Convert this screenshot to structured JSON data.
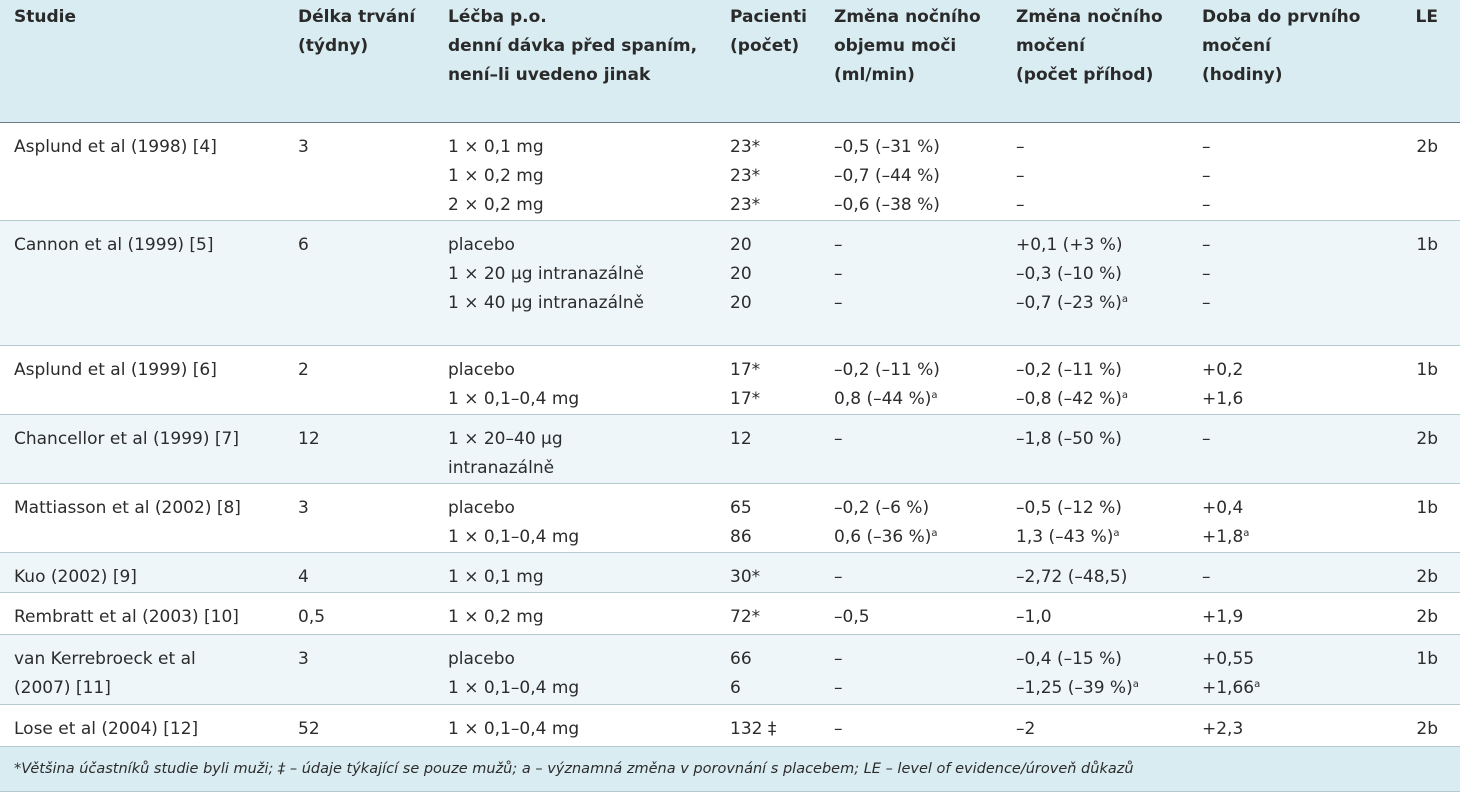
{
  "header": {
    "studie": [
      "Studie"
    ],
    "delka": [
      "Délka trvání",
      "(týdny)"
    ],
    "lecba": [
      "Léčba p.o.",
      "denní dávka před spaním,",
      "není–li uvedeno jinak"
    ],
    "pacienti": [
      "Pacienti",
      "(počet)"
    ],
    "objem": [
      "Změna nočního",
      "objemu moči",
      "(ml/min)"
    ],
    "moceni": [
      "Změna nočního",
      "močení",
      "(počet příhod)"
    ],
    "doba": [
      "Doba do prvního",
      "močení",
      "(hodiny)"
    ],
    "le": [
      "LE"
    ]
  },
  "rows": [
    {
      "studie": [
        "Asplund et al (1998) [4]"
      ],
      "delka": [
        "3"
      ],
      "lecba": [
        "1 × 0,1 mg",
        "1 × 0,2 mg",
        "2 × 0,2 mg"
      ],
      "pacienti": [
        "23*",
        "23*",
        "23*"
      ],
      "objem": [
        "–0,5 (–31 %)",
        "–0,7 (–44 %)",
        "–0,6 (–38 %)"
      ],
      "moceni": [
        "–",
        "–",
        "–"
      ],
      "doba": [
        "–",
        "–",
        "–"
      ],
      "le": [
        "2b"
      ]
    },
    {
      "studie": [
        "Cannon et al (1999) [5]"
      ],
      "delka": [
        "6"
      ],
      "lecba": [
        "placebo",
        "1 × 20 µg intranazálně",
        "1 × 40 µg intranazálně"
      ],
      "pacienti": [
        "20",
        "20",
        "20"
      ],
      "objem": [
        "–",
        "–",
        "–"
      ],
      "moceni": [
        "+0,1 (+3 %)",
        "–0,3 (–10 %)",
        "–0,7 (–23 %)"
      ],
      "moceni_sup": [
        "",
        "",
        "a"
      ],
      "doba": [
        "–",
        "–",
        "–"
      ],
      "le": [
        "1b"
      ]
    },
    {
      "studie": [
        "Asplund et al (1999) [6]"
      ],
      "delka": [
        "2"
      ],
      "lecba": [
        "placebo",
        "1 × 0,1–0,4 mg"
      ],
      "pacienti": [
        "17*",
        "17*"
      ],
      "objem": [
        "–0,2 (–11 %)",
        "0,8 (–44 %)"
      ],
      "objem_sup": [
        "",
        "a"
      ],
      "moceni": [
        "–0,2 (–11 %)",
        "–0,8 (–42 %)"
      ],
      "moceni_sup": [
        "",
        "a"
      ],
      "doba": [
        "+0,2",
        "+1,6"
      ],
      "le": [
        "1b"
      ]
    },
    {
      "studie": [
        "Chancellor et al (1999) [7]"
      ],
      "delka": [
        "12"
      ],
      "lecba": [
        "1 × 20–40 µg",
        "intranazálně"
      ],
      "pacienti": [
        "12"
      ],
      "objem": [
        "–"
      ],
      "moceni": [
        "–1,8 (–50 %)"
      ],
      "doba": [
        "–"
      ],
      "le": [
        "2b"
      ]
    },
    {
      "studie": [
        "Mattiasson et al (2002) [8]"
      ],
      "delka": [
        "3"
      ],
      "lecba": [
        "placebo",
        "1 × 0,1–0,4 mg"
      ],
      "pacienti": [
        "65",
        "86"
      ],
      "objem": [
        "–0,2 (–6 %)",
        "0,6 (–36 %)"
      ],
      "objem_sup": [
        "",
        "a"
      ],
      "moceni": [
        "–0,5 (–12 %)",
        "1,3 (–43 %)"
      ],
      "moceni_sup": [
        "",
        "a"
      ],
      "doba": [
        "+0,4",
        "+1,8"
      ],
      "doba_sup": [
        "",
        "a"
      ],
      "le": [
        "1b"
      ]
    },
    {
      "studie": [
        "Kuo (2002) [9]"
      ],
      "delka": [
        "4"
      ],
      "lecba": [
        "1 × 0,1 mg"
      ],
      "pacienti": [
        "30*"
      ],
      "objem": [
        "–"
      ],
      "moceni": [
        "–2,72 (–48,5)"
      ],
      "doba": [
        "–"
      ],
      "le": [
        "2b"
      ]
    },
    {
      "studie": [
        "Rembratt et al (2003) [10]"
      ],
      "delka": [
        "0,5"
      ],
      "lecba": [
        "1 × 0,2 mg"
      ],
      "pacienti": [
        "72*"
      ],
      "objem": [
        "–0,5"
      ],
      "moceni": [
        "–1,0"
      ],
      "doba": [
        "+1,9"
      ],
      "le": [
        "2b"
      ]
    },
    {
      "studie": [
        "van Kerrebroeck et al",
        "(2007) [11]"
      ],
      "delka": [
        "3"
      ],
      "lecba": [
        "placebo",
        "1 × 0,1–0,4 mg"
      ],
      "pacienti": [
        "66",
        "6"
      ],
      "objem": [
        "–",
        "–"
      ],
      "moceni": [
        "–0,4 (–15 %)",
        "–1,25 (–39 %)"
      ],
      "moceni_sup": [
        "",
        "a"
      ],
      "doba": [
        "+0,55",
        "+1,66"
      ],
      "doba_sup": [
        "",
        "a"
      ],
      "le": [
        "1b"
      ]
    },
    {
      "studie": [
        "Lose et al (2004) [12]"
      ],
      "delka": [
        "52"
      ],
      "lecba": [
        "1 × 0,1–0,4 mg"
      ],
      "pacienti": [
        "132 ‡"
      ],
      "objem": [
        "–"
      ],
      "moceni": [
        "–2"
      ],
      "doba": [
        "+2,3"
      ],
      "le": [
        "2b"
      ]
    }
  ],
  "footnote": "*Většina účastníků studie byli muži; ‡ – údaje týkající se pouze mužů; a – významná změna v porovnání s placebem; LE – level of evidence/úroveň důkazů"
}
